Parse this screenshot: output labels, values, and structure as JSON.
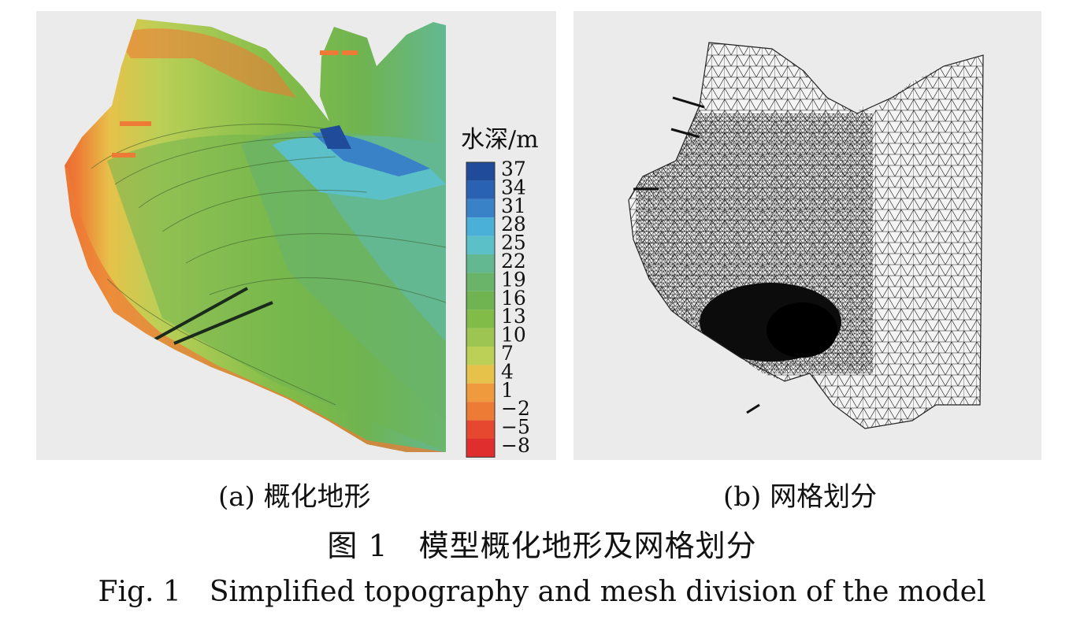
{
  "figure": {
    "panel_a": {
      "label": "(a) 概化地形",
      "legend_title": "水深/m",
      "legend": [
        {
          "value": "37",
          "color": "#1f4b9a"
        },
        {
          "value": "34",
          "color": "#2a62b3"
        },
        {
          "value": "31",
          "color": "#3a82c8"
        },
        {
          "value": "28",
          "color": "#4bb0d8"
        },
        {
          "value": "25",
          "color": "#5cc0c8"
        },
        {
          "value": "22",
          "color": "#63b892"
        },
        {
          "value": "19",
          "color": "#6ab46a"
        },
        {
          "value": "16",
          "color": "#6fb451"
        },
        {
          "value": "13",
          "color": "#82bc48"
        },
        {
          "value": "10",
          "color": "#9cc651"
        },
        {
          "value": "7",
          "color": "#bccf56"
        },
        {
          "value": "4",
          "color": "#e6c24a"
        },
        {
          "value": "1",
          "color": "#ef9a3c"
        },
        {
          "value": "−2",
          "color": "#ed7b35"
        },
        {
          "value": "−5",
          "color": "#e5472f"
        },
        {
          "value": "−8",
          "color": "#e02e2e"
        }
      ]
    },
    "panel_b": {
      "label": "(b) 网格划分"
    },
    "caption_cn": "图 1　模型概化地形及网格划分",
    "caption_en": "Fig. 1　Simplified topography and mesh division of the model"
  }
}
